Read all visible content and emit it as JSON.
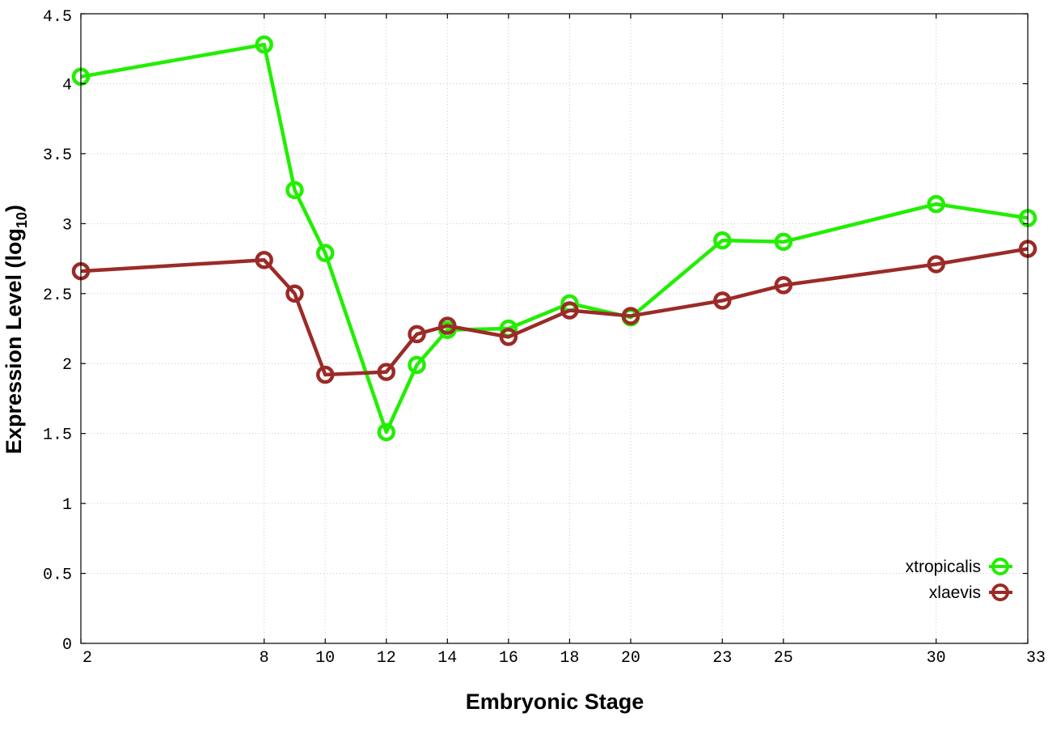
{
  "chart_data": {
    "type": "line",
    "xlabel": "Embryonic Stage",
    "ylabel": "Expression Level (log",
    "ylabel_subscript": "10",
    "ylabel_close": ")",
    "x_ticks": [
      "2",
      "8",
      "10",
      "12",
      "14",
      "16",
      "18",
      "20",
      "23",
      "25",
      "30",
      "33"
    ],
    "y_ticks": [
      "0",
      "0.5",
      "1",
      "1.5",
      "2",
      "2.5",
      "3",
      "3.5",
      "4",
      "4.5"
    ],
    "ylim": [
      0,
      4.5
    ],
    "grid": true,
    "legend_position": "bottom-right",
    "x": [
      2,
      8,
      9,
      10,
      12,
      13,
      14,
      16,
      18,
      20,
      23,
      25,
      30,
      33
    ],
    "series": [
      {
        "name": "xtropicalis",
        "color": "#22ee00",
        "values": [
          4.05,
          4.28,
          3.24,
          2.79,
          1.51,
          1.99,
          2.24,
          2.25,
          2.43,
          2.33,
          2.88,
          2.87,
          3.14,
          3.04
        ]
      },
      {
        "name": "xlaevis",
        "color": "#9b2b28",
        "values": [
          2.66,
          2.74,
          2.5,
          1.92,
          1.94,
          2.21,
          2.27,
          2.19,
          2.38,
          2.34,
          2.45,
          2.56,
          2.71,
          2.82
        ]
      }
    ]
  }
}
